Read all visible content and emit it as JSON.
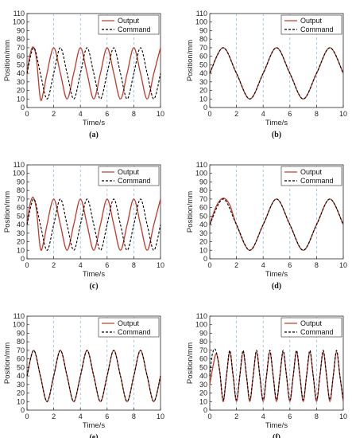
{
  "chart_data": [
    {
      "type": "line",
      "panel": "(a)",
      "xlabel": "Time/s",
      "ylabel": "Position/mm",
      "xlim": [
        0,
        10
      ],
      "ylim": [
        0,
        110
      ],
      "xticks": [
        "0",
        "2",
        "4",
        "6",
        "8",
        "10"
      ],
      "yticks": [
        "0",
        "10",
        "20",
        "30",
        "40",
        "50",
        "60",
        "70",
        "80",
        "90",
        "100",
        "110"
      ],
      "grid": "dashed vertical lines at x = 2, 4, 6, 8",
      "legend": "top-right",
      "series": [
        {
          "name": "Output",
          "x": [
            0,
            0.2,
            0.45,
            0.7,
            1.0,
            1.25,
            1.5,
            2.0,
            2.5,
            3.0,
            3.5,
            4.0,
            4.5,
            5.0,
            5.5,
            6.0,
            6.5,
            7.0,
            7.5,
            8.0,
            8.5,
            9.0,
            9.5,
            10.0
          ],
          "y": [
            40,
            60,
            71,
            58,
            10,
            20,
            40,
            70,
            40,
            10,
            40,
            70,
            40,
            10,
            40,
            70,
            40,
            10,
            40,
            70,
            40,
            10,
            40,
            70
          ]
        },
        {
          "name": "Command",
          "x": [
            0,
            0.5,
            1.0,
            1.5,
            2.0,
            2.5,
            3.0,
            3.5,
            4.0,
            4.5,
            5.0,
            5.5,
            6.0,
            6.5,
            7.0,
            7.5,
            8.0,
            8.5,
            9.0,
            9.5,
            10.0
          ],
          "y": [
            40,
            70,
            40,
            10,
            40,
            70,
            40,
            10,
            40,
            70,
            40,
            10,
            40,
            70,
            40,
            10,
            40,
            70,
            40,
            10,
            40
          ]
        }
      ]
    },
    {
      "type": "line",
      "panel": "(b)",
      "xlabel": "Time/s",
      "ylabel": "Position/mm",
      "xlim": [
        0,
        10
      ],
      "ylim": [
        0,
        110
      ],
      "xticks": [
        "0",
        "2",
        "4",
        "6",
        "8",
        "10"
      ],
      "yticks": [
        "0",
        "10",
        "20",
        "30",
        "40",
        "50",
        "60",
        "70",
        "80",
        "90",
        "100",
        "110"
      ],
      "grid": "dashed vertical lines at x = 2, 4, 6, 8",
      "legend": "top-right",
      "series": [
        {
          "name": "Output",
          "x": [
            0,
            1,
            2,
            3,
            4,
            5,
            6,
            7,
            8,
            9,
            10
          ],
          "y": [
            40,
            70,
            40,
            10,
            40,
            70,
            40,
            10,
            40,
            70,
            40
          ]
        },
        {
          "name": "Command",
          "x": [
            0,
            1,
            2,
            3,
            4,
            5,
            6,
            7,
            8,
            9,
            10
          ],
          "y": [
            40,
            70,
            40,
            10,
            40,
            70,
            40,
            10,
            40,
            70,
            40
          ]
        }
      ]
    },
    {
      "type": "line",
      "panel": "(c)",
      "xlabel": "Time/s",
      "ylabel": "Position/mm",
      "xlim": [
        0,
        10
      ],
      "ylim": [
        0,
        110
      ],
      "xticks": [
        "0",
        "2",
        "4",
        "6",
        "8",
        "10"
      ],
      "yticks": [
        "0",
        "10",
        "20",
        "30",
        "40",
        "50",
        "60",
        "70",
        "80",
        "90",
        "100",
        "110"
      ],
      "grid": "dashed vertical lines at x = 2, 4, 6, 8",
      "legend": "top-right",
      "series": [
        {
          "name": "Output",
          "x": [
            0,
            0.2,
            0.45,
            0.7,
            1.0,
            1.25,
            1.5,
            2.0,
            2.5,
            3.0,
            3.5,
            4.0,
            4.5,
            5.0,
            5.5,
            6.0,
            6.5,
            7.0,
            7.5,
            8.0,
            8.5,
            9.0,
            9.5,
            10.0
          ],
          "y": [
            40,
            62,
            72,
            58,
            12,
            20,
            40,
            70,
            40,
            10,
            40,
            70,
            40,
            10,
            40,
            70,
            40,
            10,
            40,
            70,
            40,
            10,
            40,
            70
          ]
        },
        {
          "name": "Command",
          "x": [
            0,
            0.5,
            1.0,
            1.5,
            2.0,
            2.5,
            3.0,
            3.5,
            4.0,
            4.5,
            5.0,
            5.5,
            6.0,
            6.5,
            7.0,
            7.5,
            8.0,
            8.5,
            9.0,
            9.5,
            10.0
          ],
          "y": [
            40,
            70,
            40,
            10,
            40,
            70,
            40,
            10,
            40,
            70,
            40,
            10,
            40,
            70,
            40,
            10,
            40,
            70,
            40,
            10,
            40
          ]
        }
      ]
    },
    {
      "type": "line",
      "panel": "(d)",
      "xlabel": "Time/s",
      "ylabel": "Position/mm",
      "xlim": [
        0,
        10
      ],
      "ylim": [
        0,
        110
      ],
      "xticks": [
        "0",
        "2",
        "4",
        "6",
        "8",
        "10"
      ],
      "yticks": [
        "0",
        "10",
        "20",
        "30",
        "40",
        "50",
        "60",
        "70",
        "80",
        "90",
        "100",
        "110"
      ],
      "grid": "dashed vertical lines at x = 2, 4, 6, 8",
      "legend": "top-right",
      "series": [
        {
          "name": "Output",
          "x": [
            0,
            0.5,
            1.0,
            1.5,
            2.0,
            3.0,
            4.0,
            5.0,
            6.0,
            7.0,
            8.0,
            9.0,
            10.0
          ],
          "y": [
            40,
            62,
            71,
            63,
            40,
            10,
            40,
            70,
            40,
            10,
            40,
            70,
            40
          ]
        },
        {
          "name": "Command",
          "x": [
            0,
            1,
            2,
            3,
            4,
            5,
            6,
            7,
            8,
            9,
            10
          ],
          "y": [
            40,
            70,
            40,
            10,
            40,
            70,
            40,
            10,
            40,
            70,
            40
          ]
        }
      ]
    },
    {
      "type": "line",
      "panel": "(e)",
      "xlabel": "Time/s",
      "ylabel": "Position/mm",
      "xlim": [
        0,
        10
      ],
      "ylim": [
        0,
        110
      ],
      "xticks": [
        "0",
        "2",
        "4",
        "6",
        "8",
        "10"
      ],
      "yticks": [
        "0",
        "10",
        "20",
        "30",
        "40",
        "50",
        "60",
        "70",
        "80",
        "90",
        "100",
        "110"
      ],
      "grid": "dashed vertical lines at x = 2, 4, 6, 8",
      "legend": "top-right",
      "series": [
        {
          "name": "Output",
          "x": [
            0,
            0.5,
            1.0,
            1.5,
            2.0,
            2.5,
            3.0,
            3.5,
            4.0,
            4.5,
            5.0,
            5.5,
            6.0,
            6.5,
            7.0,
            7.5,
            8.0,
            8.5,
            9.0,
            9.5,
            10.0
          ],
          "y": [
            40,
            70,
            40,
            10,
            40,
            70,
            40,
            10,
            40,
            70,
            40,
            10,
            40,
            70,
            40,
            10,
            40,
            70,
            40,
            10,
            40
          ]
        },
        {
          "name": "Command",
          "x": [
            0,
            0.5,
            1.0,
            1.5,
            2.0,
            2.5,
            3.0,
            3.5,
            4.0,
            4.5,
            5.0,
            5.5,
            6.0,
            6.5,
            7.0,
            7.5,
            8.0,
            8.5,
            9.0,
            9.5,
            10.0
          ],
          "y": [
            40,
            70,
            40,
            10,
            40,
            70,
            40,
            10,
            40,
            70,
            40,
            10,
            40,
            70,
            40,
            10,
            40,
            70,
            40,
            10,
            40
          ]
        }
      ]
    },
    {
      "type": "line",
      "panel": "(f)",
      "xlabel": "Time/s",
      "ylabel": "Position/mm",
      "xlim": [
        0,
        10
      ],
      "ylim": [
        0,
        110
      ],
      "xticks": [
        "0",
        "2",
        "4",
        "6",
        "8",
        "10"
      ],
      "yticks": [
        "0",
        "10",
        "20",
        "30",
        "40",
        "50",
        "60",
        "70",
        "80",
        "90",
        "100",
        "110"
      ],
      "grid": "dashed vertical lines at x = 2, 4, 6, 8",
      "legend": "top-right",
      "series": [
        {
          "name": "Output",
          "x": [
            0,
            0.25,
            0.5,
            0.75,
            1.0,
            1.25,
            1.5,
            1.75,
            2.0,
            2.25,
            2.5,
            2.75,
            3.0,
            3.25,
            3.5,
            3.75,
            4.0,
            4.25,
            4.5,
            4.75,
            5.0,
            5.25,
            5.5,
            5.75,
            6.0,
            6.25,
            6.5,
            6.75,
            7.0,
            7.25,
            7.5,
            7.75,
            8.0,
            8.25,
            8.5,
            8.75,
            9.0,
            9.25,
            9.5,
            9.75,
            10.0
          ],
          "y": [
            30,
            52,
            66,
            45,
            10,
            40,
            68,
            40,
            10,
            40,
            68,
            40,
            10,
            40,
            68,
            40,
            10,
            40,
            68,
            40,
            10,
            40,
            68,
            40,
            10,
            40,
            68,
            40,
            10,
            40,
            68,
            40,
            10,
            40,
            68,
            40,
            10,
            40,
            68,
            40,
            10
          ]
        },
        {
          "name": "Command",
          "x": [
            0,
            0.2,
            0.45,
            0.75,
            1.0,
            1.25,
            1.5,
            1.75,
            2.0,
            2.25,
            2.5,
            2.75,
            3.0,
            3.25,
            3.5,
            3.75,
            4.0,
            4.25,
            4.5,
            4.75,
            5.0,
            5.25,
            5.5,
            5.75,
            6.0,
            6.25,
            6.5,
            6.75,
            7.0,
            7.25,
            7.5,
            7.75,
            8.0,
            8.25,
            8.5,
            8.75,
            9.0,
            9.25,
            9.5,
            9.75,
            10.0
          ],
          "y": [
            40,
            66,
            70,
            45,
            12,
            40,
            70,
            40,
            12,
            40,
            70,
            40,
            12,
            40,
            70,
            40,
            12,
            40,
            70,
            40,
            12,
            40,
            70,
            40,
            12,
            40,
            70,
            40,
            12,
            40,
            70,
            40,
            12,
            40,
            70,
            40,
            12,
            40,
            70,
            40,
            12
          ]
        }
      ]
    }
  ],
  "style": {
    "output_color": "#c0392b",
    "command_color": "#000000",
    "grid_color": "#7fb3d8"
  }
}
